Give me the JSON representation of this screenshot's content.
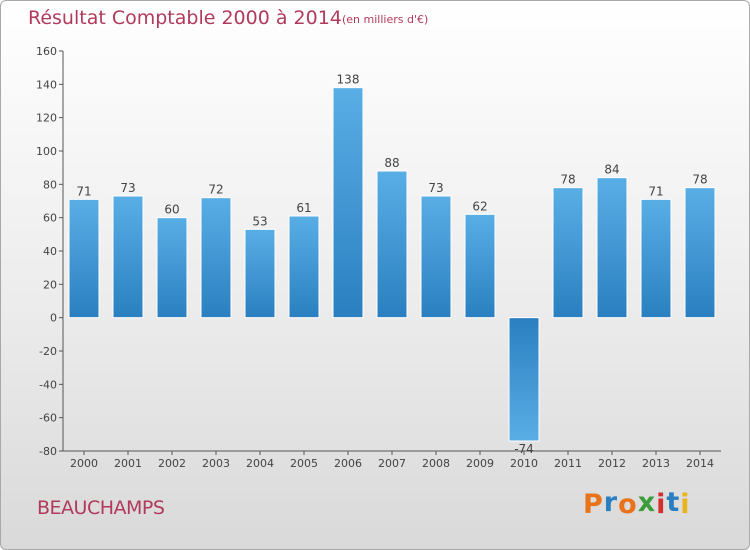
{
  "header": {
    "title": "Résultat Comptable 2000 à 2014",
    "subtitle": "(en milliers d'€)"
  },
  "footer": {
    "commune": "BEAUCHAMPS",
    "logo_letters": [
      "P",
      "r",
      "o",
      "x",
      "i",
      "t",
      "i"
    ]
  },
  "colors": {
    "title": "#b13a5c",
    "bar_light": "#5aaee6",
    "bar_dark": "#2a7fc0",
    "logo": [
      "#e8731a",
      "#2a7fc0",
      "#e8731a",
      "#3a9d3a",
      "#d32f2f",
      "#2a7fc0",
      "#e8b41a"
    ]
  },
  "chart_data": {
    "type": "bar",
    "title": "Résultat Comptable 2000 à 2014",
    "unit": "(en milliers d'€)",
    "xlabel": "",
    "ylabel": "",
    "ylim": [
      -80,
      160
    ],
    "yticks": [
      -80,
      -60,
      -40,
      -20,
      0,
      20,
      40,
      60,
      80,
      100,
      120,
      140,
      160
    ],
    "grid": false,
    "categories": [
      "2000",
      "2001",
      "2002",
      "2003",
      "2004",
      "2005",
      "2006",
      "2007",
      "2008",
      "2009",
      "2010",
      "2011",
      "2012",
      "2013",
      "2014"
    ],
    "values": [
      71,
      73,
      60,
      72,
      53,
      61,
      138,
      88,
      73,
      62,
      -74,
      78,
      84,
      71,
      78
    ]
  }
}
